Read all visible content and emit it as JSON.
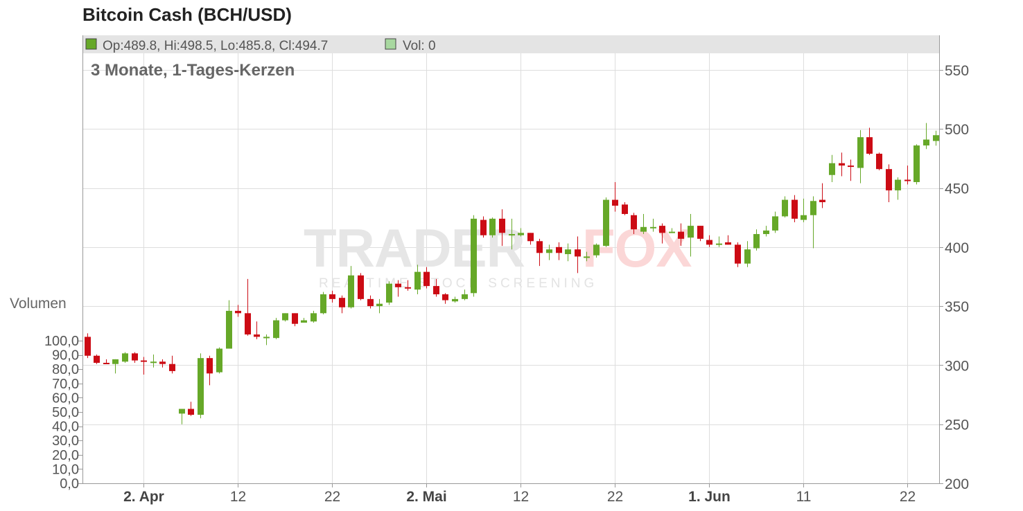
{
  "header": {
    "title": "Bitcoin Cash (BCH/USD)"
  },
  "info_bar": {
    "ohlc_text": "Op:489.8, Hi:498.5, Lo:485.8, Cl:494.7",
    "vol_text": "Vol: 0",
    "ohlc_swatch_color": "#66a828",
    "vol_swatch_color": "#a8d8a0"
  },
  "subtitle": "3 Monate, 1-Tages-Kerzen",
  "volume_axis_label": "Volumen",
  "watermark": {
    "brand_main": "TRADER",
    "brand_accent": "FOX",
    "tagline": "REALTIME STOCK SCREENING"
  },
  "colors": {
    "up": "#66a828",
    "down": "#cc0b14",
    "grid": "#dddddd",
    "axis": "#999999",
    "info_bar_bg": "#e4e4e4"
  },
  "chart_data": {
    "type": "candlestick",
    "title": "Bitcoin Cash (BCH/USD)",
    "subtitle": "3 Monate, 1-Tages-Kerzen",
    "y_right": {
      "min": 200,
      "max": 575,
      "ticks": [
        200,
        250,
        300,
        350,
        400,
        450,
        500,
        550
      ]
    },
    "y_left": {
      "label": "Volumen",
      "min": 0,
      "max": 100,
      "ticks": [
        "0,0",
        "10,0",
        "20,0",
        "30,0",
        "40,0",
        "50,0",
        "60,0",
        "70,0",
        "80,0",
        "90,0",
        "100,0"
      ]
    },
    "x_ticks": [
      {
        "label": "2. Apr",
        "day": 6,
        "bold": true
      },
      {
        "label": "12",
        "day": 16,
        "bold": false
      },
      {
        "label": "22",
        "day": 26,
        "bold": false
      },
      {
        "label": "2. Mai",
        "day": 36,
        "bold": true
      },
      {
        "label": "12",
        "day": 46,
        "bold": false
      },
      {
        "label": "22",
        "day": 56,
        "bold": false
      },
      {
        "label": "1. Jun",
        "day": 66,
        "bold": true
      },
      {
        "label": "11",
        "day": 76,
        "bold": false
      },
      {
        "label": "22",
        "day": 87,
        "bold": false
      }
    ],
    "candles": [
      [
        0,
        324,
        327,
        306,
        308
      ],
      [
        1,
        308,
        309,
        301,
        302
      ],
      [
        2,
        302,
        305,
        301,
        301
      ],
      [
        3,
        301,
        305,
        293,
        305
      ],
      [
        4,
        303,
        311,
        302,
        310
      ],
      [
        5,
        310,
        311,
        302,
        304
      ],
      [
        6,
        304,
        307,
        292,
        303
      ],
      [
        7,
        303,
        309,
        298,
        303
      ],
      [
        8,
        303,
        305,
        298,
        301
      ],
      [
        9,
        301,
        308,
        293,
        295
      ],
      [
        10,
        259,
        263,
        250,
        263
      ],
      [
        11,
        263,
        269,
        257,
        258
      ],
      [
        12,
        258,
        310,
        255,
        306
      ],
      [
        13,
        306,
        308,
        283,
        293
      ],
      [
        14,
        294,
        315,
        293,
        314
      ],
      [
        15,
        314,
        355,
        314,
        346
      ],
      [
        16,
        346,
        351,
        341,
        344
      ],
      [
        17,
        344,
        373,
        325,
        326
      ],
      [
        18,
        326,
        337,
        322,
        324
      ],
      [
        19,
        324,
        326,
        317,
        324
      ],
      [
        20,
        323,
        340,
        322,
        338
      ],
      [
        21,
        338,
        344,
        337,
        344
      ],
      [
        22,
        344,
        344,
        333,
        335
      ],
      [
        23,
        336,
        340,
        336,
        338
      ],
      [
        24,
        337,
        346,
        336,
        344
      ],
      [
        25,
        344,
        362,
        343,
        360
      ],
      [
        26,
        360,
        363,
        353,
        356
      ],
      [
        27,
        357,
        359,
        344,
        349
      ],
      [
        28,
        349,
        384,
        348,
        376
      ],
      [
        29,
        376,
        378,
        355,
        356
      ],
      [
        30,
        356,
        359,
        348,
        350
      ],
      [
        31,
        350,
        356,
        344,
        352
      ],
      [
        32,
        353,
        371,
        351,
        369
      ],
      [
        33,
        369,
        372,
        358,
        366
      ],
      [
        34,
        366,
        372,
        363,
        365
      ],
      [
        35,
        364,
        385,
        360,
        379
      ],
      [
        36,
        379,
        383,
        365,
        367
      ],
      [
        37,
        367,
        373,
        358,
        360
      ],
      [
        38,
        360,
        361,
        352,
        355
      ],
      [
        39,
        354,
        358,
        353,
        356
      ],
      [
        40,
        356,
        364,
        355,
        360
      ],
      [
        41,
        361,
        427,
        358,
        424
      ],
      [
        42,
        423,
        426,
        408,
        410
      ],
      [
        43,
        410,
        425,
        408,
        424
      ],
      [
        44,
        424,
        432,
        401,
        412
      ],
      [
        45,
        411,
        424,
        398,
        411
      ],
      [
        46,
        410,
        416,
        409,
        412
      ],
      [
        47,
        412,
        412,
        402,
        405
      ],
      [
        48,
        405,
        407,
        384,
        395
      ],
      [
        49,
        395,
        402,
        389,
        398
      ],
      [
        50,
        400,
        404,
        389,
        395
      ],
      [
        51,
        394,
        403,
        388,
        398
      ],
      [
        52,
        398,
        409,
        378,
        392
      ],
      [
        53,
        392,
        396,
        388,
        392
      ],
      [
        54,
        393,
        403,
        391,
        402
      ],
      [
        55,
        401,
        442,
        400,
        440
      ],
      [
        56,
        440,
        455,
        430,
        435
      ],
      [
        57,
        436,
        438,
        427,
        428
      ],
      [
        58,
        427,
        429,
        411,
        415
      ],
      [
        59,
        413,
        428,
        411,
        417
      ],
      [
        60,
        417,
        424,
        413,
        417
      ],
      [
        61,
        418,
        420,
        403,
        412
      ],
      [
        62,
        412,
        416,
        413,
        413
      ],
      [
        63,
        413,
        420,
        401,
        407
      ],
      [
        64,
        408,
        428,
        392,
        418
      ],
      [
        65,
        418,
        418,
        405,
        407
      ],
      [
        66,
        406,
        410,
        400,
        402
      ],
      [
        67,
        402,
        409,
        400,
        403
      ],
      [
        68,
        404,
        410,
        402,
        402
      ],
      [
        69,
        402,
        404,
        383,
        386
      ],
      [
        70,
        386,
        405,
        383,
        398
      ],
      [
        71,
        399,
        415,
        397,
        411
      ],
      [
        72,
        411,
        418,
        409,
        414
      ],
      [
        73,
        414,
        430,
        412,
        426
      ],
      [
        74,
        426,
        443,
        425,
        440
      ],
      [
        75,
        440,
        444,
        421,
        424
      ],
      [
        76,
        423,
        441,
        421,
        427
      ],
      [
        77,
        427,
        443,
        399,
        439
      ],
      [
        78,
        440,
        454,
        433,
        438
      ],
      [
        79,
        461,
        478,
        455,
        471
      ],
      [
        80,
        471,
        480,
        460,
        469
      ],
      [
        81,
        469,
        474,
        456,
        468
      ],
      [
        82,
        467,
        499,
        454,
        493
      ],
      [
        83,
        493,
        501,
        478,
        479
      ],
      [
        84,
        479,
        480,
        465,
        466
      ],
      [
        85,
        466,
        470,
        438,
        448
      ],
      [
        86,
        448,
        459,
        440,
        457
      ],
      [
        87,
        457,
        469,
        453,
        456
      ],
      [
        88,
        455,
        487,
        453,
        486
      ],
      [
        89,
        486,
        505,
        483,
        491
      ],
      [
        90,
        489.8,
        498.5,
        485.8,
        494.7
      ]
    ]
  }
}
